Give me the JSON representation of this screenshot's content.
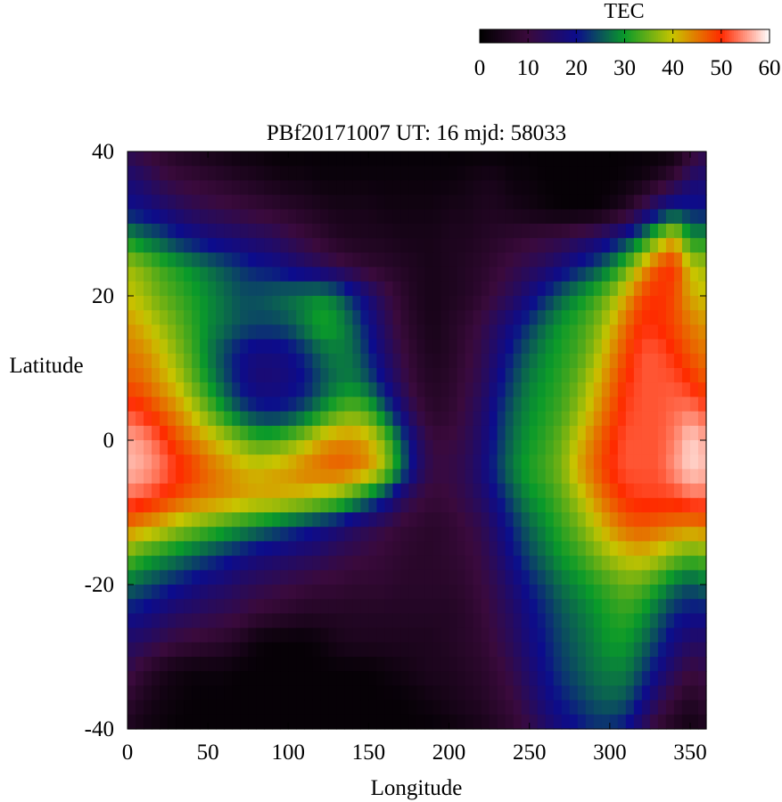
{
  "chart_data": {
    "type": "heatmap",
    "title": "PBf20171007  UT: 16  mjd: 58033",
    "xlabel": "Longitude",
    "ylabel": "Latitude",
    "xlim": [
      0,
      360
    ],
    "ylim": [
      -40,
      40
    ],
    "xticks": [
      "0",
      "50",
      "100",
      "150",
      "200",
      "250",
      "300",
      "350"
    ],
    "yticks": [
      "40",
      "20",
      "0",
      "-20",
      "-40"
    ],
    "colorbar": {
      "label": "TEC",
      "range": [
        0,
        60
      ],
      "ticks": [
        "0",
        "10",
        "20",
        "30",
        "40",
        "50",
        "60"
      ],
      "colors": [
        "#000000",
        "#3a0a3c",
        "#0c0c8c",
        "#0a9a2a",
        "#c8c400",
        "#ff2a00",
        "#ffffff"
      ]
    },
    "x": [
      0,
      10,
      20,
      30,
      40,
      50,
      60,
      70,
      80,
      90,
      100,
      110,
      120,
      130,
      140,
      150,
      160,
      170,
      180,
      190,
      200,
      210,
      220,
      230,
      240,
      250,
      260,
      270,
      280,
      290,
      300,
      310,
      320,
      330,
      340,
      350,
      360
    ],
    "y": [
      40,
      36,
      32,
      28,
      24,
      20,
      16,
      12,
      8,
      4,
      0,
      -4,
      -8,
      -12,
      -16,
      -20,
      -24,
      -28,
      -32,
      -36,
      -40
    ],
    "z": [
      [
        12,
        10,
        8,
        6,
        5,
        4,
        3,
        2,
        2,
        1,
        1,
        1,
        1,
        1,
        1,
        1,
        1,
        1,
        1,
        1,
        1,
        1,
        1,
        1,
        1,
        1,
        1,
        1,
        1,
        1,
        1,
        1,
        1,
        1,
        2,
        8,
        12
      ],
      [
        17,
        15,
        12,
        10,
        9,
        8,
        7,
        6,
        5,
        4,
        3,
        3,
        2,
        2,
        2,
        2,
        2,
        2,
        2,
        2,
        2,
        3,
        4,
        4,
        2,
        2,
        1,
        1,
        1,
        1,
        1,
        2,
        3,
        6,
        10,
        16,
        17
      ],
      [
        20,
        19,
        17,
        15,
        13,
        12,
        11,
        10,
        9,
        8,
        7,
        6,
        5,
        4,
        4,
        4,
        3,
        3,
        3,
        3,
        4,
        4,
        5,
        5,
        4,
        3,
        2,
        1,
        1,
        1,
        3,
        6,
        12,
        18,
        22,
        21,
        20
      ],
      [
        30,
        27,
        25,
        22,
        20,
        18,
        17,
        16,
        15,
        14,
        12,
        10,
        8,
        6,
        5,
        5,
        5,
        4,
        4,
        4,
        5,
        5,
        6,
        7,
        8,
        9,
        10,
        11,
        13,
        15,
        18,
        22,
        28,
        36,
        42,
        30,
        30
      ],
      [
        38,
        36,
        33,
        31,
        29,
        27,
        25,
        23,
        21,
        20,
        18,
        16,
        14,
        12,
        10,
        8,
        7,
        6,
        5,
        4,
        5,
        6,
        7,
        9,
        11,
        13,
        15,
        18,
        21,
        24,
        28,
        34,
        42,
        48,
        50,
        40,
        38
      ],
      [
        40,
        38,
        35,
        33,
        31,
        29,
        27,
        25,
        25,
        26,
        27,
        28,
        29,
        27,
        22,
        17,
        12,
        8,
        5,
        4,
        5,
        6,
        8,
        11,
        14,
        18,
        22,
        26,
        29,
        32,
        36,
        42,
        48,
        50,
        48,
        42,
        40
      ],
      [
        43,
        41,
        38,
        35,
        32,
        29,
        27,
        25,
        24,
        24,
        25,
        28,
        31,
        30,
        26,
        20,
        14,
        9,
        6,
        4,
        6,
        8,
        11,
        15,
        19,
        23,
        27,
        30,
        32,
        35,
        40,
        46,
        50,
        50,
        48,
        45,
        43
      ],
      [
        45,
        44,
        41,
        37,
        33,
        28,
        24,
        20,
        18,
        18,
        19,
        22,
        26,
        28,
        27,
        22,
        16,
        11,
        7,
        5,
        6,
        9,
        12,
        17,
        22,
        26,
        29,
        31,
        33,
        37,
        43,
        48,
        52,
        52,
        50,
        47,
        45
      ],
      [
        47,
        46,
        43,
        40,
        35,
        30,
        25,
        20,
        17,
        17,
        18,
        20,
        24,
        27,
        28,
        25,
        19,
        13,
        8,
        6,
        7,
        10,
        13,
        19,
        24,
        28,
        30,
        32,
        35,
        40,
        45,
        50,
        52,
        52,
        52,
        50,
        47
      ],
      [
        52,
        50,
        47,
        44,
        40,
        35,
        30,
        25,
        22,
        21,
        22,
        25,
        29,
        33,
        35,
        33,
        26,
        18,
        11,
        7,
        8,
        11,
        15,
        21,
        26,
        29,
        31,
        33,
        37,
        42,
        47,
        51,
        52,
        52,
        53,
        54,
        52
      ],
      [
        56,
        55,
        52,
        48,
        45,
        42,
        39,
        36,
        33,
        33,
        35,
        38,
        42,
        44,
        44,
        42,
        36,
        26,
        16,
        10,
        10,
        12,
        16,
        22,
        27,
        30,
        32,
        35,
        40,
        45,
        49,
        52,
        52,
        52,
        54,
        58,
        56
      ],
      [
        57,
        56,
        54,
        51,
        49,
        46,
        44,
        42,
        41,
        42,
        43,
        45,
        46,
        47,
        46,
        44,
        38,
        28,
        17,
        11,
        11,
        13,
        17,
        23,
        28,
        31,
        33,
        36,
        42,
        46,
        50,
        52,
        52,
        52,
        55,
        58,
        57
      ],
      [
        53,
        52,
        50,
        48,
        46,
        45,
        44,
        43,
        42,
        42,
        41,
        40,
        38,
        36,
        32,
        27,
        22,
        15,
        11,
        9,
        10,
        12,
        15,
        20,
        25,
        29,
        31,
        34,
        38,
        43,
        47,
        50,
        51,
        51,
        51,
        53,
        53
      ],
      [
        45,
        43,
        41,
        38,
        36,
        34,
        32,
        30,
        28,
        26,
        24,
        22,
        20,
        18,
        15,
        13,
        11,
        9,
        8,
        7,
        8,
        10,
        12,
        17,
        22,
        26,
        29,
        32,
        35,
        39,
        43,
        46,
        47,
        46,
        45,
        44,
        45
      ],
      [
        35,
        32,
        30,
        28,
        26,
        24,
        22,
        20,
        18,
        17,
        16,
        15,
        14,
        12,
        11,
        10,
        9,
        8,
        7,
        7,
        8,
        9,
        11,
        15,
        20,
        24,
        27,
        30,
        32,
        35,
        38,
        40,
        41,
        39,
        36,
        34,
        35
      ],
      [
        27,
        25,
        23,
        21,
        19,
        17,
        16,
        14,
        13,
        12,
        11,
        10,
        9,
        9,
        8,
        8,
        8,
        7,
        7,
        7,
        7,
        8,
        10,
        13,
        17,
        21,
        24,
        27,
        29,
        31,
        33,
        35,
        34,
        31,
        27,
        25,
        27
      ],
      [
        20,
        19,
        17,
        15,
        14,
        13,
        12,
        11,
        9,
        8,
        7,
        6,
        6,
        6,
        6,
        6,
        6,
        6,
        6,
        6,
        6,
        7,
        9,
        12,
        15,
        19,
        22,
        25,
        27,
        29,
        31,
        32,
        30,
        26,
        22,
        20,
        20
      ],
      [
        15,
        14,
        12,
        10,
        9,
        8,
        7,
        5,
        2,
        1,
        1,
        1,
        2,
        4,
        5,
        5,
        5,
        5,
        5,
        5,
        6,
        7,
        8,
        11,
        14,
        18,
        21,
        24,
        26,
        28,
        30,
        30,
        27,
        23,
        18,
        15,
        15
      ],
      [
        12,
        8,
        5,
        3,
        2,
        2,
        2,
        1,
        1,
        1,
        1,
        1,
        1,
        1,
        1,
        1,
        2,
        3,
        4,
        5,
        5,
        6,
        7,
        9,
        12,
        16,
        20,
        23,
        25,
        27,
        28,
        28,
        24,
        19,
        14,
        10,
        12
      ],
      [
        8,
        5,
        3,
        2,
        1,
        1,
        1,
        1,
        1,
        1,
        1,
        1,
        1,
        1,
        1,
        1,
        1,
        1,
        2,
        3,
        4,
        5,
        6,
        8,
        10,
        14,
        18,
        21,
        23,
        25,
        26,
        25,
        20,
        14,
        9,
        6,
        8
      ],
      [
        5,
        3,
        2,
        1,
        1,
        1,
        1,
        1,
        1,
        1,
        1,
        1,
        1,
        1,
        1,
        1,
        1,
        1,
        1,
        1,
        2,
        3,
        4,
        6,
        8,
        11,
        15,
        18,
        20,
        22,
        22,
        20,
        14,
        8,
        5,
        3,
        5
      ]
    ]
  }
}
